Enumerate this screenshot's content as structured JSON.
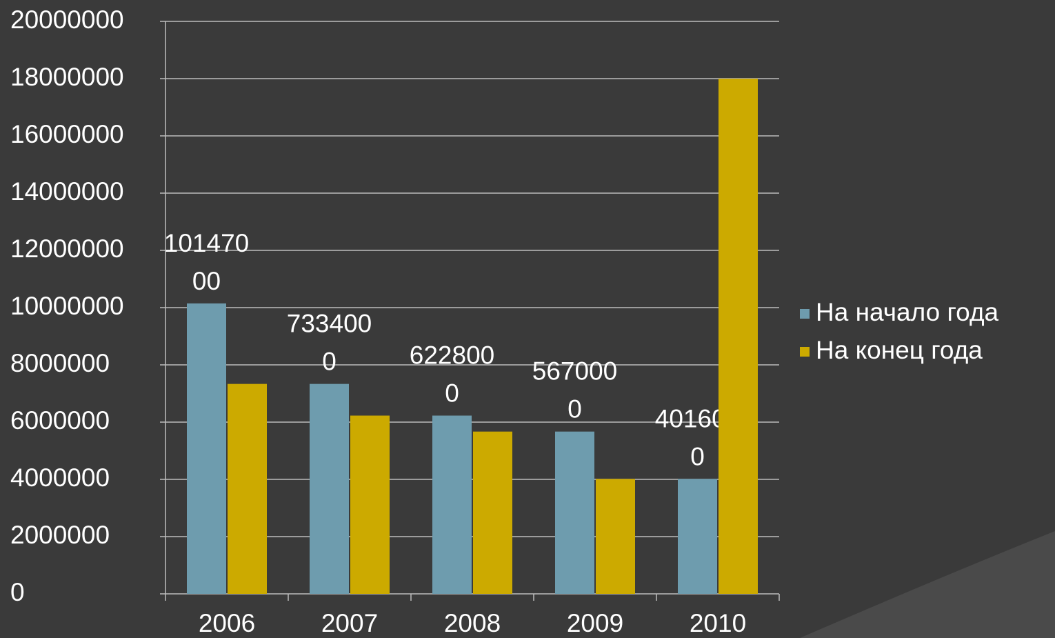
{
  "chart_data": {
    "type": "bar",
    "categories": [
      "2006",
      "2007",
      "2008",
      "2009",
      "2010"
    ],
    "series": [
      {
        "name": "На начало года",
        "color": "#6e9cae",
        "values": [
          10147000,
          7334000,
          6228000,
          5670000,
          4016000
        ],
        "show_labels": true
      },
      {
        "name": "На конец года",
        "color": "#ccaa00",
        "values": [
          7334000,
          6228000,
          5670000,
          4016000,
          18000000
        ],
        "show_labels": false
      }
    ],
    "ylim": [
      0,
      20000000
    ],
    "yticks": [
      0,
      2000000,
      4000000,
      6000000,
      8000000,
      10000000,
      12000000,
      14000000,
      16000000,
      18000000,
      20000000
    ],
    "grid": true,
    "legend": "right"
  }
}
